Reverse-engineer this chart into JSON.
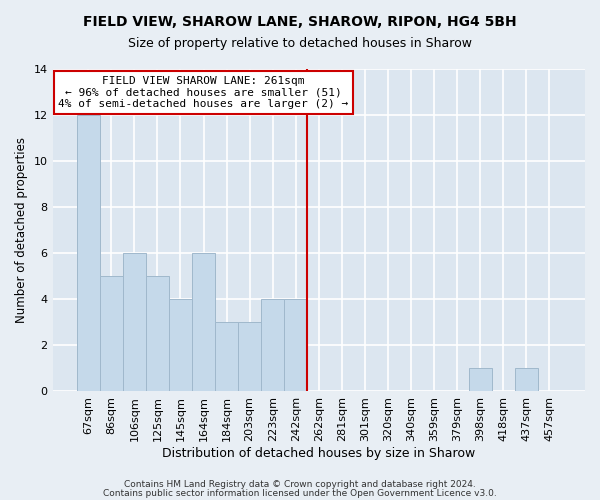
{
  "title": "FIELD VIEW, SHAROW LANE, SHAROW, RIPON, HG4 5BH",
  "subtitle": "Size of property relative to detached houses in Sharow",
  "xlabel": "Distribution of detached houses by size in Sharow",
  "ylabel": "Number of detached properties",
  "bar_labels": [
    "67sqm",
    "86sqm",
    "106sqm",
    "125sqm",
    "145sqm",
    "164sqm",
    "184sqm",
    "203sqm",
    "223sqm",
    "242sqm",
    "262sqm",
    "281sqm",
    "301sqm",
    "320sqm",
    "340sqm",
    "359sqm",
    "379sqm",
    "398sqm",
    "418sqm",
    "437sqm",
    "457sqm"
  ],
  "bar_values": [
    12,
    5,
    6,
    5,
    4,
    6,
    3,
    3,
    4,
    4,
    0,
    0,
    0,
    0,
    0,
    0,
    0,
    1,
    0,
    1,
    0
  ],
  "bar_color": "#c5d9ea",
  "bar_edge_color": "#a0b8cc",
  "reference_line_index": 10,
  "reference_line_color": "#cc0000",
  "annotation_line1": "FIELD VIEW SHAROW LANE: 261sqm",
  "annotation_line2": "← 96% of detached houses are smaller (51)",
  "annotation_line3": "4% of semi-detached houses are larger (2) →",
  "annotation_box_color": "#ffffff",
  "annotation_box_edge": "#cc0000",
  "ylim": [
    0,
    14
  ],
  "yticks": [
    0,
    2,
    4,
    6,
    8,
    10,
    12,
    14
  ],
  "footer_line1": "Contains HM Land Registry data © Crown copyright and database right 2024.",
  "footer_line2": "Contains public sector information licensed under the Open Government Licence v3.0.",
  "background_color": "#e8eef4",
  "plot_bg_color": "#dce6f0",
  "grid_color": "#ffffff",
  "title_fontsize": 10,
  "subtitle_fontsize": 9,
  "xlabel_fontsize": 9,
  "ylabel_fontsize": 8.5,
  "tick_fontsize": 8,
  "annotation_fontsize": 8,
  "footer_fontsize": 6.5
}
